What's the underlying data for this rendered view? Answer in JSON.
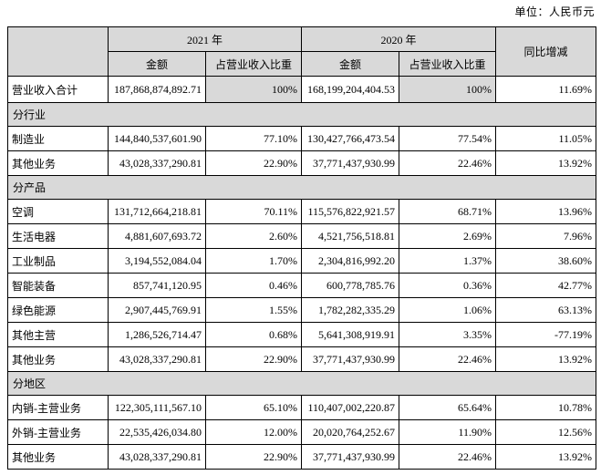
{
  "unit_label": "单位：人民币元",
  "table": {
    "header": {
      "corner": "",
      "year_2021": "2021 年",
      "year_2020": "2020 年",
      "yoy": "同比增减",
      "amount": "金额",
      "proportion": "占营业收入比重"
    },
    "colors": {
      "header_bg": "#d9d9d9",
      "border": "#000000"
    },
    "rows": [
      {
        "type": "data",
        "label": "营业收入合计",
        "a2021": "187,868,874,892.71",
        "p2021": "100%",
        "a2020": "168,199,204,404.53",
        "p2020": "100%",
        "yoy": "11.69%",
        "pct_shaded": true
      },
      {
        "type": "section",
        "label": "分行业"
      },
      {
        "type": "data",
        "label": "制造业",
        "a2021": "144,840,537,601.90",
        "p2021": "77.10%",
        "a2020": "130,427,766,473.54",
        "p2020": "77.54%",
        "yoy": "11.05%"
      },
      {
        "type": "data",
        "label": "其他业务",
        "a2021": "43,028,337,290.81",
        "p2021": "22.90%",
        "a2020": "37,771,437,930.99",
        "p2020": "22.46%",
        "yoy": "13.92%"
      },
      {
        "type": "section",
        "label": "分产品"
      },
      {
        "type": "data",
        "label": "空调",
        "a2021": "131,712,664,218.81",
        "p2021": "70.11%",
        "a2020": "115,576,822,921.57",
        "p2020": "68.71%",
        "yoy": "13.96%"
      },
      {
        "type": "data",
        "label": "生活电器",
        "a2021": "4,881,607,693.72",
        "p2021": "2.60%",
        "a2020": "4,521,756,518.81",
        "p2020": "2.69%",
        "yoy": "7.96%"
      },
      {
        "type": "data",
        "label": "工业制品",
        "a2021": "3,194,552,084.04",
        "p2021": "1.70%",
        "a2020": "2,304,816,992.20",
        "p2020": "1.37%",
        "yoy": "38.60%"
      },
      {
        "type": "data",
        "label": "智能装备",
        "a2021": "857,741,120.95",
        "p2021": "0.46%",
        "a2020": "600,778,785.76",
        "p2020": "0.36%",
        "yoy": "42.77%"
      },
      {
        "type": "data",
        "label": "绿色能源",
        "a2021": "2,907,445,769.91",
        "p2021": "1.55%",
        "a2020": "1,782,282,335.29",
        "p2020": "1.06%",
        "yoy": "63.13%"
      },
      {
        "type": "data",
        "label": "其他主营",
        "a2021": "1,286,526,714.47",
        "p2021": "0.68%",
        "a2020": "5,641,308,919.91",
        "p2020": "3.35%",
        "yoy": "-77.19%"
      },
      {
        "type": "data",
        "label": "其他业务",
        "a2021": "43,028,337,290.81",
        "p2021": "22.90%",
        "a2020": "37,771,437,930.99",
        "p2020": "22.46%",
        "yoy": "13.92%"
      },
      {
        "type": "section",
        "label": "分地区"
      },
      {
        "type": "data",
        "label": "内销-主营业务",
        "a2021": "122,305,111,567.10",
        "p2021": "65.10%",
        "a2020": "110,407,002,220.87",
        "p2020": "65.64%",
        "yoy": "10.78%"
      },
      {
        "type": "data",
        "label": "外销-主营业务",
        "a2021": "22,535,426,034.80",
        "p2021": "12.00%",
        "a2020": "20,020,764,252.67",
        "p2020": "11.90%",
        "yoy": "12.56%"
      },
      {
        "type": "data",
        "label": "其他业务",
        "a2021": "43,028,337,290.81",
        "p2021": "22.90%",
        "a2020": "37,771,437,930.99",
        "p2020": "22.46%",
        "yoy": "13.92%"
      }
    ]
  }
}
